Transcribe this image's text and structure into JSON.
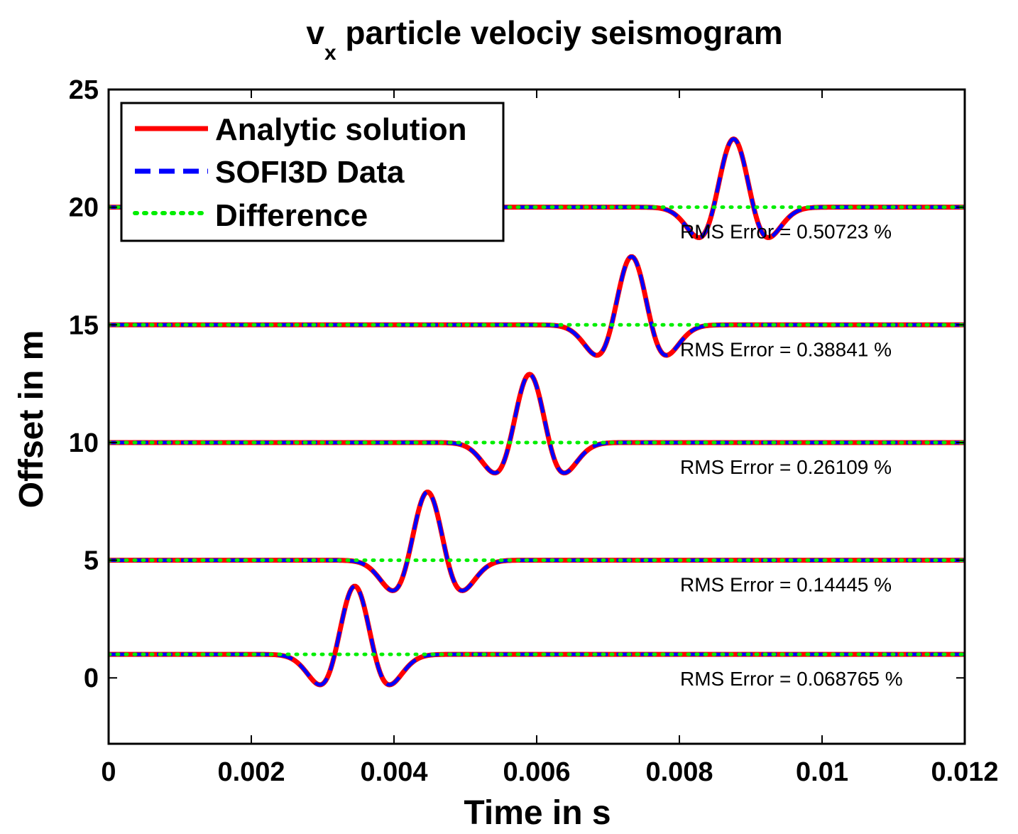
{
  "chart_data": {
    "type": "line",
    "title_main": "v",
    "title_sub": "x",
    "title_rest": " particle velociy seismogram",
    "xlabel": "Time in s",
    "ylabel": "Offset in m",
    "xlim": [
      0,
      0.012
    ],
    "ylim": [
      -2.8,
      25
    ],
    "xticks": [
      0,
      0.002,
      0.004,
      0.006,
      0.008,
      0.01,
      0.012
    ],
    "xtick_labels": [
      "0",
      "0.002",
      "0.004",
      "0.006",
      "0.008",
      "0.01",
      "0.012"
    ],
    "yticks": [
      0,
      5,
      10,
      15,
      20,
      25
    ],
    "ytick_labels": [
      "0",
      "5",
      "10",
      "15",
      "20",
      "25"
    ],
    "grid": false,
    "legend_position": "top-left",
    "legend": [
      {
        "label": "Analytic solution",
        "color": "#ff0000",
        "style": "solid"
      },
      {
        "label": "SOFI3D Data",
        "color": "#0000ff",
        "style": "dashed"
      },
      {
        "label": "Difference",
        "color": "#00ee00",
        "style": "dotted"
      }
    ],
    "traces": [
      {
        "offset": 1,
        "center_time": 0.00345,
        "amplitude": 2.9,
        "period": 0.00125,
        "rms_label": "RMS Error = 0.068765 %"
      },
      {
        "offset": 5,
        "center_time": 0.00447,
        "amplitude": 2.9,
        "period": 0.00125,
        "rms_label": "RMS Error = 0.14445 %"
      },
      {
        "offset": 10,
        "center_time": 0.0059,
        "amplitude": 2.9,
        "period": 0.00125,
        "rms_label": "RMS Error = 0.26109 %"
      },
      {
        "offset": 15,
        "center_time": 0.00733,
        "amplitude": 2.9,
        "period": 0.00125,
        "rms_label": "RMS Error = 0.38841 %"
      },
      {
        "offset": 20,
        "center_time": 0.00876,
        "amplitude": 2.9,
        "period": 0.00125,
        "rms_label": "RMS Error = 0.50723 %"
      }
    ]
  }
}
